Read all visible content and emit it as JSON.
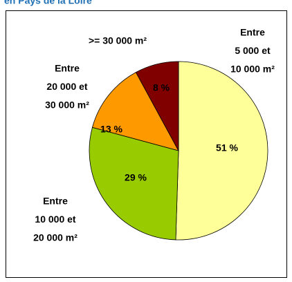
{
  "chart_data": {
    "type": "pie",
    "title": "en Pays de la Loire",
    "categories": [
      [
        "Entre",
        "5 000 et",
        "10 000 m²"
      ],
      [
        ">= 30 000 m²"
      ],
      [
        "Entre",
        "20 000 et",
        "30 000 m²"
      ],
      [
        "Entre",
        "10 000 et",
        "20 000 m²"
      ]
    ],
    "values": [
      51,
      8,
      13,
      29
    ],
    "value_labels": [
      "51 %",
      "8 %",
      "13 %",
      "29 %"
    ],
    "colors": [
      "#ffff99",
      "#800000",
      "#ff9900",
      "#99cc00"
    ]
  }
}
